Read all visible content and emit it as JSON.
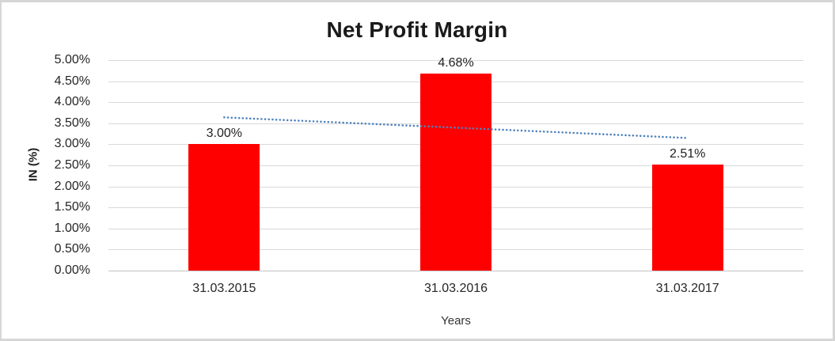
{
  "chart_data": {
    "type": "bar",
    "title": "Net Profit Margin",
    "xlabel": "Years",
    "ylabel": "IN (%)",
    "categories": [
      "31.03.2015",
      "31.03.2016",
      "31.03.2017"
    ],
    "values": [
      3.0,
      4.68,
      2.51
    ],
    "data_labels": [
      "3.00%",
      "4.68%",
      "2.51%"
    ],
    "y_ticks": [
      "5.00%",
      "4.50%",
      "4.00%",
      "3.50%",
      "3.00%",
      "2.50%",
      "2.00%",
      "1.50%",
      "1.00%",
      "0.50%",
      "0.00%"
    ],
    "ylim": [
      0,
      5
    ],
    "y_step": 0.5,
    "grid": "horizontal",
    "legend": "none",
    "bar_color": "#FF0000",
    "trendline": {
      "type": "linear",
      "style": "dotted",
      "color": "#4F81BD",
      "start_value": 3.64,
      "end_value": 3.15
    }
  },
  "frame": {
    "border_color": "#D6D6D6",
    "gridline_color": "#D9D9D9"
  }
}
